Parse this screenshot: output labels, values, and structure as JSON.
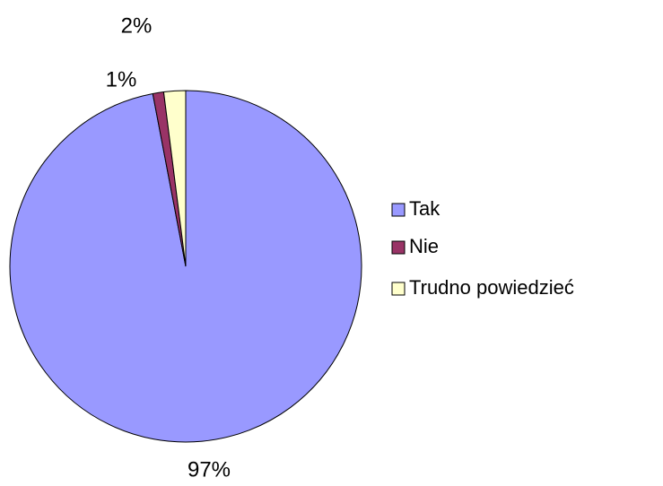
{
  "chart_data": {
    "type": "pie",
    "categories": [
      "Tak",
      "Nie",
      "Trudno powiedzieć"
    ],
    "values": [
      97,
      1,
      2
    ],
    "value_labels": [
      "97%",
      "1%",
      "2%"
    ],
    "colors": [
      "#9999ff",
      "#993366",
      "#ffffcc"
    ],
    "legend": "right"
  }
}
